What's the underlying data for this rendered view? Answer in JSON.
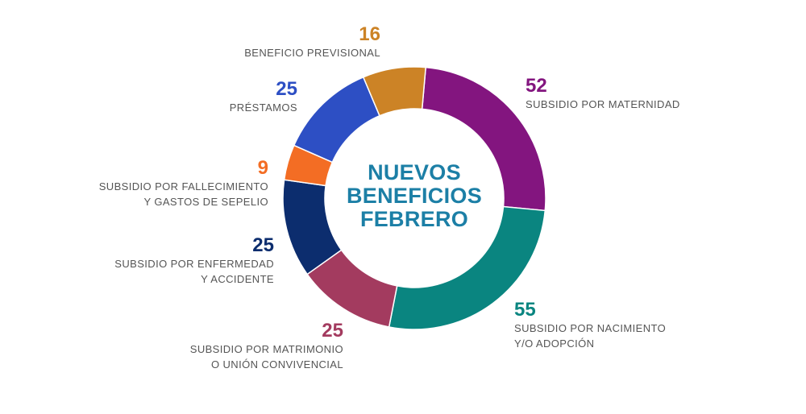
{
  "chart_data": {
    "type": "donut",
    "title": "NUEVOS BENEFICIOS FEBRERO",
    "title_lines": [
      "NUEVOS",
      "BENEFICIOS",
      "FEBRERO"
    ],
    "slices": [
      {
        "label": "SUBSIDIO POR MATERNIDAD",
        "label_lines": [
          "SUBSIDIO POR MATERNIDAD"
        ],
        "value": 52,
        "color": "#83157f"
      },
      {
        "label": "SUBSIDIO POR NACIMIENTO Y/O ADOPCIÓN",
        "label_lines": [
          "SUBSIDIO POR NACIMIENTO",
          "Y/O ADOPCIÓN"
        ],
        "value": 55,
        "color": "#0a8580"
      },
      {
        "label": "SUBSIDIO POR MATRIMONIO O UNIÓN CONVIVENCIAL",
        "label_lines": [
          "SUBSIDIO POR MATRIMONIO",
          "O UNIÓN CONVIVENCIAL"
        ],
        "value": 25,
        "color": "#a33b5f"
      },
      {
        "label": "SUBSIDIO POR ENFERMEDAD Y ACCIDENTE",
        "label_lines": [
          "SUBSIDIO POR ENFERMEDAD",
          "Y ACCIDENTE"
        ],
        "value": 25,
        "color": "#0c2d6e"
      },
      {
        "label": "SUBSIDIO POR FALLECIMIENTO Y GASTOS DE SEPELIO",
        "label_lines": [
          "SUBSIDIO POR FALLECIMIENTO",
          "Y GASTOS DE SEPELIO"
        ],
        "value": 9,
        "color": "#f36d24"
      },
      {
        "label": "PRÉSTAMOS",
        "label_lines": [
          "PRÉSTAMOS"
        ],
        "value": 25,
        "color": "#2d4fc4"
      },
      {
        "label": "BENEFICIO PREVISIONAL",
        "label_lines": [
          "BENEFICIO PREVISIONAL"
        ],
        "value": 16,
        "color": "#cc8326"
      }
    ]
  }
}
